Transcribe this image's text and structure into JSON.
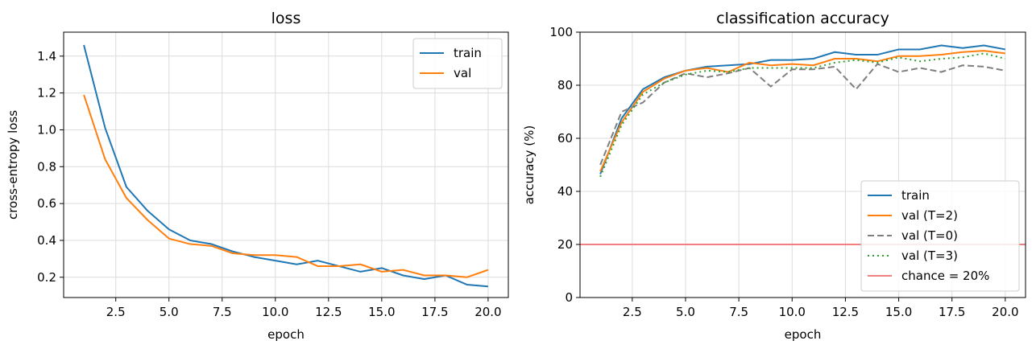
{
  "chart_data": [
    {
      "type": "line",
      "title": "loss",
      "xlabel": "epoch",
      "ylabel": "cross-entropy loss",
      "xlim": [
        0.05,
        20.95
      ],
      "ylim": [
        0.09,
        1.53
      ],
      "xticks": [
        2.5,
        5.0,
        7.5,
        10.0,
        12.5,
        15.0,
        17.5,
        20.0
      ],
      "xtick_labels": [
        "2.5",
        "5.0",
        "7.5",
        "10.0",
        "12.5",
        "15.0",
        "17.5",
        "20.0"
      ],
      "yticks": [
        0.2,
        0.4,
        0.6,
        0.8,
        1.0,
        1.2,
        1.4
      ],
      "ytick_labels": [
        "0.2",
        "0.4",
        "0.6",
        "0.8",
        "1.0",
        "1.2",
        "1.4"
      ],
      "grid": true,
      "legend_position": "top-right",
      "x": [
        1,
        2,
        3,
        4,
        5,
        6,
        7,
        8,
        9,
        10,
        11,
        12,
        13,
        14,
        15,
        16,
        17,
        18,
        19,
        20
      ],
      "series": [
        {
          "name": "train",
          "color": "#1f77b4",
          "style": "solid",
          "values": [
            1.46,
            1.01,
            0.69,
            0.56,
            0.46,
            0.4,
            0.38,
            0.34,
            0.31,
            0.29,
            0.27,
            0.29,
            0.26,
            0.23,
            0.25,
            0.21,
            0.19,
            0.21,
            0.16,
            0.15
          ]
        },
        {
          "name": "val",
          "color": "#ff7f0e",
          "style": "solid",
          "values": [
            1.19,
            0.84,
            0.63,
            0.51,
            0.41,
            0.38,
            0.37,
            0.33,
            0.32,
            0.32,
            0.31,
            0.26,
            0.26,
            0.27,
            0.23,
            0.24,
            0.21,
            0.21,
            0.2,
            0.24
          ]
        }
      ]
    },
    {
      "type": "line",
      "title": "classification accuracy",
      "xlabel": "epoch",
      "ylabel": "accuracy (%)",
      "xlim": [
        0.05,
        20.95
      ],
      "ylim": [
        0,
        100
      ],
      "xticks": [
        2.5,
        5.0,
        7.5,
        10.0,
        12.5,
        15.0,
        17.5,
        20.0
      ],
      "xtick_labels": [
        "2.5",
        "5.0",
        "7.5",
        "10.0",
        "12.5",
        "15.0",
        "17.5",
        "20.0"
      ],
      "yticks": [
        0,
        20,
        40,
        60,
        80,
        100
      ],
      "ytick_labels": [
        "0",
        "20",
        "40",
        "60",
        "80",
        "100"
      ],
      "grid": true,
      "legend_position": "bottom-right",
      "x": [
        1,
        2,
        3,
        4,
        5,
        6,
        7,
        8,
        9,
        10,
        11,
        12,
        13,
        14,
        15,
        16,
        17,
        18,
        19,
        20
      ],
      "series": [
        {
          "name": "train",
          "color": "#1f77b4",
          "style": "solid",
          "values": [
            46.5,
            67.5,
            78.5,
            83.0,
            85.5,
            87.0,
            87.5,
            88.0,
            89.5,
            89.5,
            90.0,
            92.5,
            91.5,
            91.5,
            93.5,
            93.5,
            95.0,
            94.0,
            95.0,
            93.5
          ]
        },
        {
          "name": "val (T=2)",
          "color": "#ff7f0e",
          "style": "solid",
          "values": [
            47.5,
            66.0,
            77.5,
            82.5,
            85.5,
            86.5,
            85.0,
            88.5,
            87.5,
            88.0,
            87.5,
            90.0,
            90.0,
            89.0,
            91.0,
            91.0,
            91.5,
            92.5,
            93.0,
            92.0
          ]
        },
        {
          "name": "val (T=0)",
          "color": "#7f7f7f",
          "style": "dashed",
          "values": [
            50.0,
            70.0,
            73.5,
            81.0,
            84.5,
            83.0,
            84.5,
            86.5,
            79.5,
            86.0,
            86.0,
            87.0,
            78.5,
            88.0,
            85.0,
            86.5,
            85.0,
            87.5,
            87.0,
            85.5
          ]
        },
        {
          "name": "val (T=3)",
          "color": "#2ca02c",
          "style": "dotted",
          "values": [
            45.5,
            65.0,
            76.5,
            81.0,
            84.0,
            85.5,
            85.0,
            86.5,
            86.5,
            86.5,
            86.5,
            88.5,
            89.5,
            88.5,
            90.5,
            89.0,
            90.0,
            90.5,
            92.0,
            90.0
          ]
        }
      ],
      "reference_lines": [
        {
          "name": "chance = 20%",
          "y": 20,
          "color": "#f08080"
        }
      ]
    }
  ]
}
